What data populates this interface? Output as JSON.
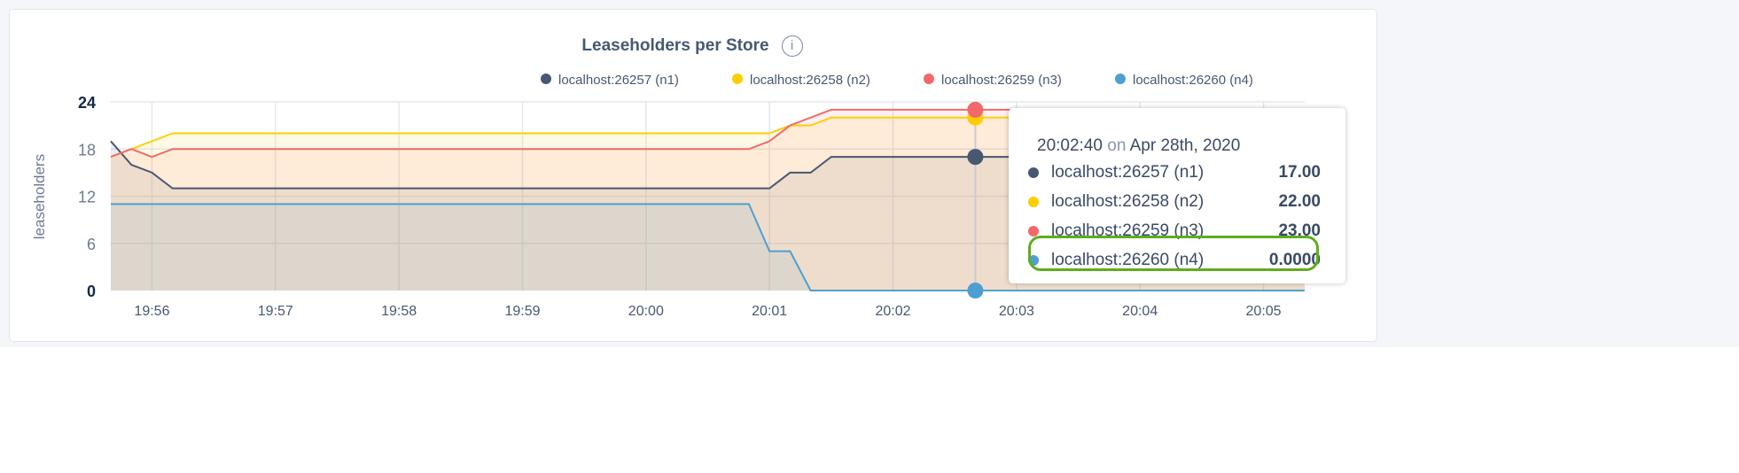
{
  "chart_data": {
    "type": "area",
    "title": "Leaseholders per Store",
    "ylabel": "leaseholders",
    "xlabel": "",
    "ylim": [
      0,
      24
    ],
    "xlim": [
      "19:55:40",
      "20:05:20"
    ],
    "yticks": [
      "0",
      "6",
      "12",
      "18",
      "24"
    ],
    "xticks": [
      "19:56",
      "19:57",
      "19:58",
      "19:59",
      "20:00",
      "20:01",
      "20:02",
      "20:03",
      "20:04",
      "20:05"
    ],
    "grid": true,
    "legend_position": "top-right",
    "series": [
      {
        "name": "localhost:26257 (n1)",
        "color": "#475872",
        "points": [
          [
            "19:55:40",
            19
          ],
          [
            "19:55:50",
            16
          ],
          [
            "19:56:00",
            15
          ],
          [
            "19:56:10",
            13
          ],
          [
            "20:01:00",
            13
          ],
          [
            "20:01:10",
            15
          ],
          [
            "20:01:20",
            15
          ],
          [
            "20:01:30",
            17
          ],
          [
            "20:05:20",
            17
          ]
        ]
      },
      {
        "name": "localhost:26258 (n2)",
        "color": "#ffcd02",
        "points": [
          [
            "19:55:40",
            17
          ],
          [
            "19:55:50",
            18
          ],
          [
            "19:56:10",
            20
          ],
          [
            "20:01:00",
            20
          ],
          [
            "20:01:10",
            21
          ],
          [
            "20:01:20",
            21
          ],
          [
            "20:01:30",
            22
          ],
          [
            "20:05:20",
            22
          ]
        ]
      },
      {
        "name": "localhost:26259 (n3)",
        "color": "#f16969",
        "points": [
          [
            "19:55:40",
            17
          ],
          [
            "19:55:50",
            18
          ],
          [
            "19:56:00",
            17
          ],
          [
            "19:56:10",
            18
          ],
          [
            "20:00:50",
            18
          ],
          [
            "20:01:00",
            19
          ],
          [
            "20:01:10",
            21
          ],
          [
            "20:01:30",
            23
          ],
          [
            "20:05:20",
            23
          ]
        ]
      },
      {
        "name": "localhost:26260 (n4)",
        "color": "#4e9fd1",
        "points": [
          [
            "19:55:40",
            11
          ],
          [
            "20:00:50",
            11
          ],
          [
            "20:01:00",
            5
          ],
          [
            "20:01:10",
            5
          ],
          [
            "20:01:20",
            0
          ],
          [
            "20:05:20",
            0
          ]
        ]
      }
    ]
  },
  "tooltip": {
    "time": "20:02:40",
    "on": "on",
    "date": "Apr 28th, 2020",
    "hover_x": "20:02:40",
    "rows": [
      {
        "name": "localhost:26257 (n1)",
        "value": "17.00",
        "color": "#475872"
      },
      {
        "name": "localhost:26258 (n2)",
        "value": "22.00",
        "color": "#ffcd02"
      },
      {
        "name": "localhost:26259 (n3)",
        "value": "23.00",
        "color": "#f16969"
      },
      {
        "name": "localhost:26260 (n4)",
        "value": "0.0000",
        "color": "#4e9fd1",
        "highlighted": true
      }
    ],
    "highlight_color": "#5fad1f"
  },
  "info_icon": "i"
}
